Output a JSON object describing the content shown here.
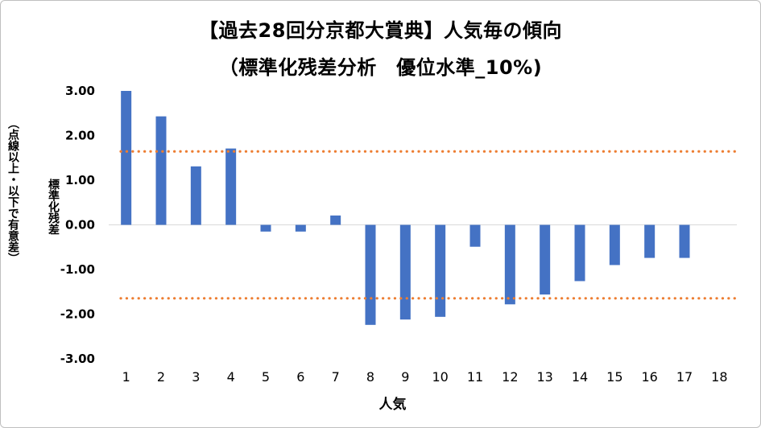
{
  "chart_data": {
    "type": "bar",
    "title": "【過去28回分京都大賞典】人気毎の傾向",
    "subtitle": "（標準化残差分析　優位水準_10%)",
    "xlabel": "人気",
    "ylabel": "標準化残差",
    "ylabel_note": "（点線以上・以下で有意差）",
    "categories": [
      "1",
      "2",
      "3",
      "4",
      "5",
      "6",
      "7",
      "8",
      "9",
      "10",
      "11",
      "12",
      "13",
      "14",
      "15",
      "16",
      "17",
      "18"
    ],
    "values": [
      3.0,
      2.43,
      1.31,
      1.71,
      -0.15,
      -0.15,
      0.21,
      -2.24,
      -2.12,
      -2.06,
      -0.49,
      -1.78,
      -1.56,
      -1.26,
      -0.9,
      -0.74,
      -0.74,
      null
    ],
    "yticks": [
      "3.00",
      "2.00",
      "1.00",
      "0.00",
      "-1.00",
      "-2.00",
      "-3.00"
    ],
    "ylim": [
      -3,
      3
    ],
    "threshold_lines": [
      1.645,
      -1.645
    ],
    "bar_color": "#4472c4",
    "threshold_color": "#ed7d31",
    "grid": false
  }
}
